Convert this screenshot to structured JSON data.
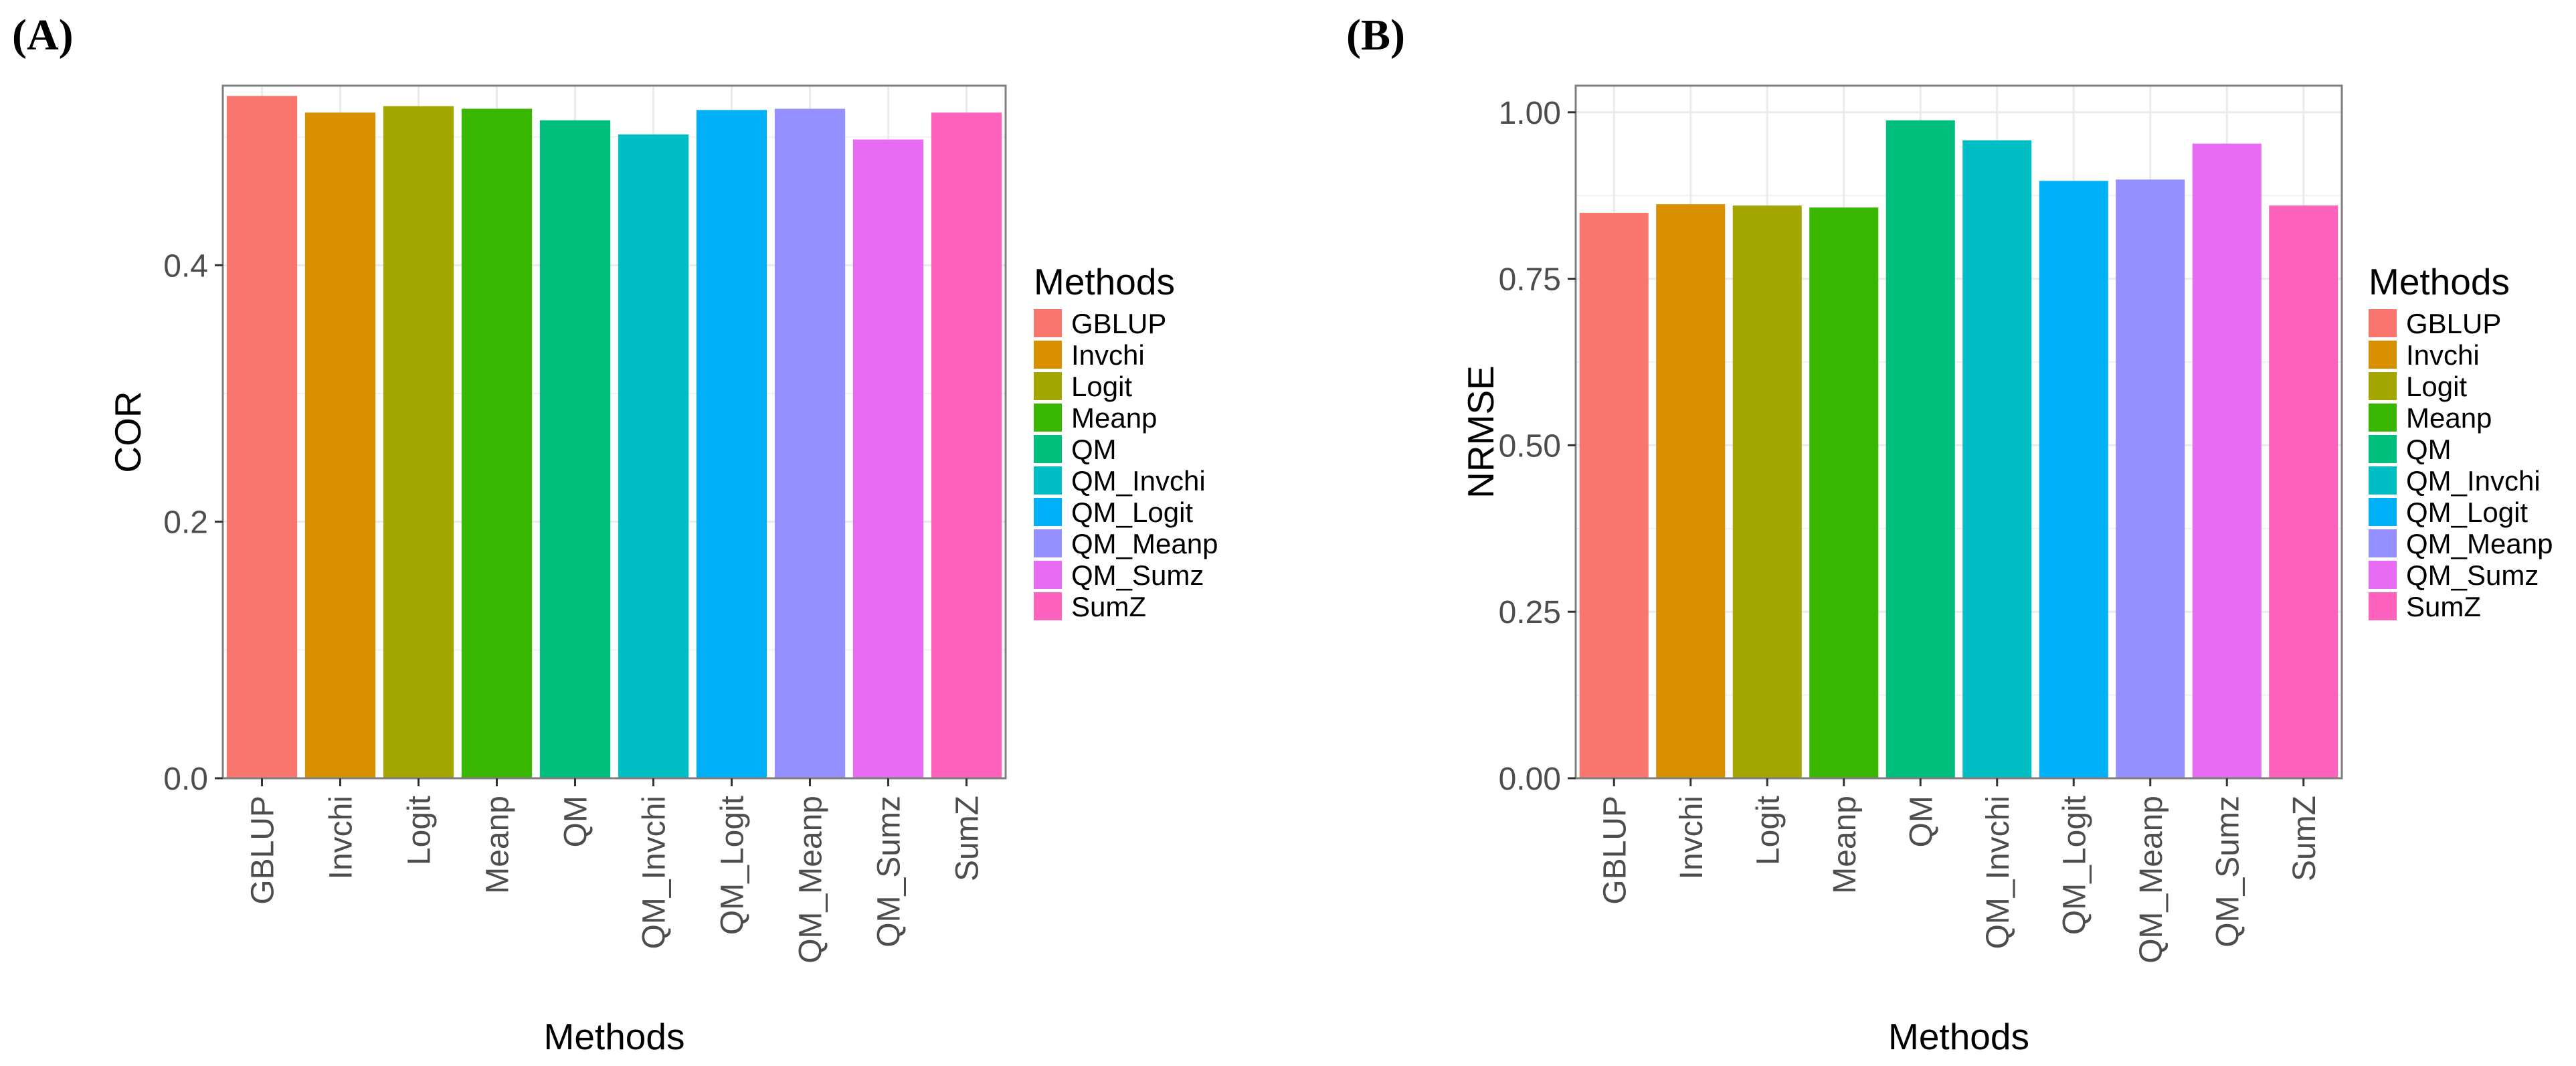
{
  "chart_data": [
    {
      "type": "bar",
      "panel_label": "(A)",
      "title": "",
      "xlabel": "Methods",
      "ylabel": "COR",
      "ylim": [
        0,
        0.54
      ],
      "yticks": [
        0.0,
        0.2,
        0.4
      ],
      "ytick_labels": [
        "0.0",
        "0.2",
        "0.4"
      ],
      "grid": true,
      "categories": [
        "GBLUP",
        "Invchi",
        "Logit",
        "Meanp",
        "QM",
        "QM_Invchi",
        "QM_Logit",
        "QM_Meanp",
        "QM_Sumz",
        "SumZ"
      ],
      "values": [
        0.532,
        0.519,
        0.524,
        0.522,
        0.513,
        0.502,
        0.521,
        0.522,
        0.498,
        0.519
      ],
      "legend": {
        "title": "Methods",
        "placement": "right",
        "entries": [
          "GBLUP",
          "Invchi",
          "Logit",
          "Meanp",
          "QM",
          "QM_Invchi",
          "QM_Logit",
          "QM_Meanp",
          "QM_Sumz",
          "SumZ"
        ]
      }
    },
    {
      "type": "bar",
      "panel_label": "(B)",
      "title": "",
      "xlabel": "Methods",
      "ylabel": "NRMSE",
      "ylim": [
        0,
        1.04
      ],
      "yticks": [
        0.0,
        0.25,
        0.5,
        0.75,
        1.0
      ],
      "ytick_labels": [
        "0.00",
        "0.25",
        "0.50",
        "0.75",
        "1.00"
      ],
      "grid": true,
      "categories": [
        "GBLUP",
        "Invchi",
        "Logit",
        "Meanp",
        "QM",
        "QM_Invchi",
        "QM_Logit",
        "QM_Meanp",
        "QM_Sumz",
        "SumZ"
      ],
      "values": [
        0.849,
        0.862,
        0.86,
        0.857,
        0.988,
        0.958,
        0.897,
        0.899,
        0.953,
        0.86
      ],
      "legend": {
        "title": "Methods",
        "placement": "right",
        "entries": [
          "GBLUP",
          "Invchi",
          "Logit",
          "Meanp",
          "QM",
          "QM_Invchi",
          "QM_Logit",
          "QM_Meanp",
          "QM_Sumz",
          "SumZ"
        ]
      }
    }
  ],
  "colors": [
    "#F8766D",
    "#D89000",
    "#A3A500",
    "#39B600",
    "#00BF7D",
    "#00BFC4",
    "#00B0F6",
    "#9590FF",
    "#E76BF3",
    "#FF62BC"
  ]
}
